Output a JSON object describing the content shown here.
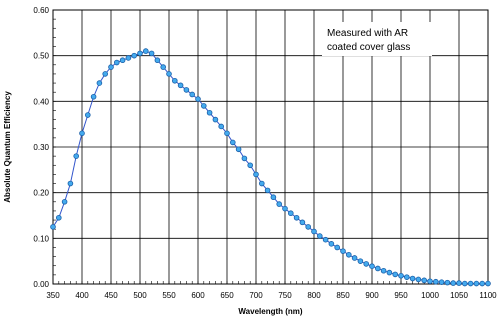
{
  "chart_data": {
    "type": "line",
    "title": "",
    "xlabel": "Wavelength (nm)",
    "ylabel": "Absolute Quantum Efficiency",
    "xlim": [
      350,
      1100
    ],
    "ylim": [
      0.0,
      0.6
    ],
    "x_ticks": [
      350,
      400,
      450,
      500,
      550,
      600,
      650,
      700,
      750,
      800,
      850,
      900,
      950,
      1000,
      1050,
      1100
    ],
    "x_tick_labels": [
      "350",
      "400",
      "450",
      "500",
      "550",
      "600",
      "650",
      "700",
      "750",
      "800",
      "850",
      "900",
      "950",
      "1000",
      "1050",
      "1100"
    ],
    "y_ticks": [
      0.0,
      0.1,
      0.2,
      0.3,
      0.4,
      0.5,
      0.6
    ],
    "y_tick_labels": [
      "0.00",
      "0.10",
      "0.20",
      "0.30",
      "0.40",
      "0.50",
      "0.60"
    ],
    "x_minor_step": 10,
    "grid": true,
    "annotation": [
      "Measured with AR",
      "coated cover glass"
    ],
    "colors": {
      "line": "#3355cc",
      "marker_fill": "#44aaee",
      "marker_edge": "#1a5fa8",
      "grid": "#000000"
    },
    "series": [
      {
        "x": [
          350,
          360,
          370,
          380,
          390,
          400,
          410,
          420,
          430,
          440,
          450,
          460,
          470,
          480,
          490,
          500,
          510,
          520,
          530,
          540,
          550,
          560,
          570,
          580,
          590,
          600,
          610,
          620,
          630,
          640,
          650,
          660,
          670,
          680,
          690,
          700,
          710,
          720,
          730,
          740,
          750,
          760,
          770,
          780,
          790,
          800,
          810,
          820,
          830,
          840,
          850,
          860,
          870,
          880,
          890,
          900,
          910,
          920,
          930,
          940,
          950,
          960,
          970,
          980,
          990,
          1000,
          1010,
          1020,
          1030,
          1040,
          1050,
          1060,
          1070,
          1080,
          1090,
          1100
        ],
        "y": [
          0.125,
          0.145,
          0.18,
          0.22,
          0.28,
          0.33,
          0.37,
          0.41,
          0.44,
          0.46,
          0.475,
          0.485,
          0.49,
          0.495,
          0.5,
          0.505,
          0.51,
          0.505,
          0.49,
          0.475,
          0.46,
          0.445,
          0.435,
          0.425,
          0.415,
          0.405,
          0.39,
          0.375,
          0.36,
          0.345,
          0.33,
          0.31,
          0.295,
          0.275,
          0.26,
          0.24,
          0.22,
          0.205,
          0.19,
          0.175,
          0.165,
          0.155,
          0.145,
          0.135,
          0.125,
          0.115,
          0.105,
          0.097,
          0.088,
          0.08,
          0.072,
          0.064,
          0.057,
          0.05,
          0.044,
          0.039,
          0.034,
          0.029,
          0.025,
          0.021,
          0.018,
          0.015,
          0.012,
          0.01,
          0.008,
          0.006,
          0.005,
          0.004,
          0.003,
          0.002,
          0.002,
          0.001,
          0.001,
          0.001,
          0.001,
          0.001
        ]
      }
    ]
  }
}
